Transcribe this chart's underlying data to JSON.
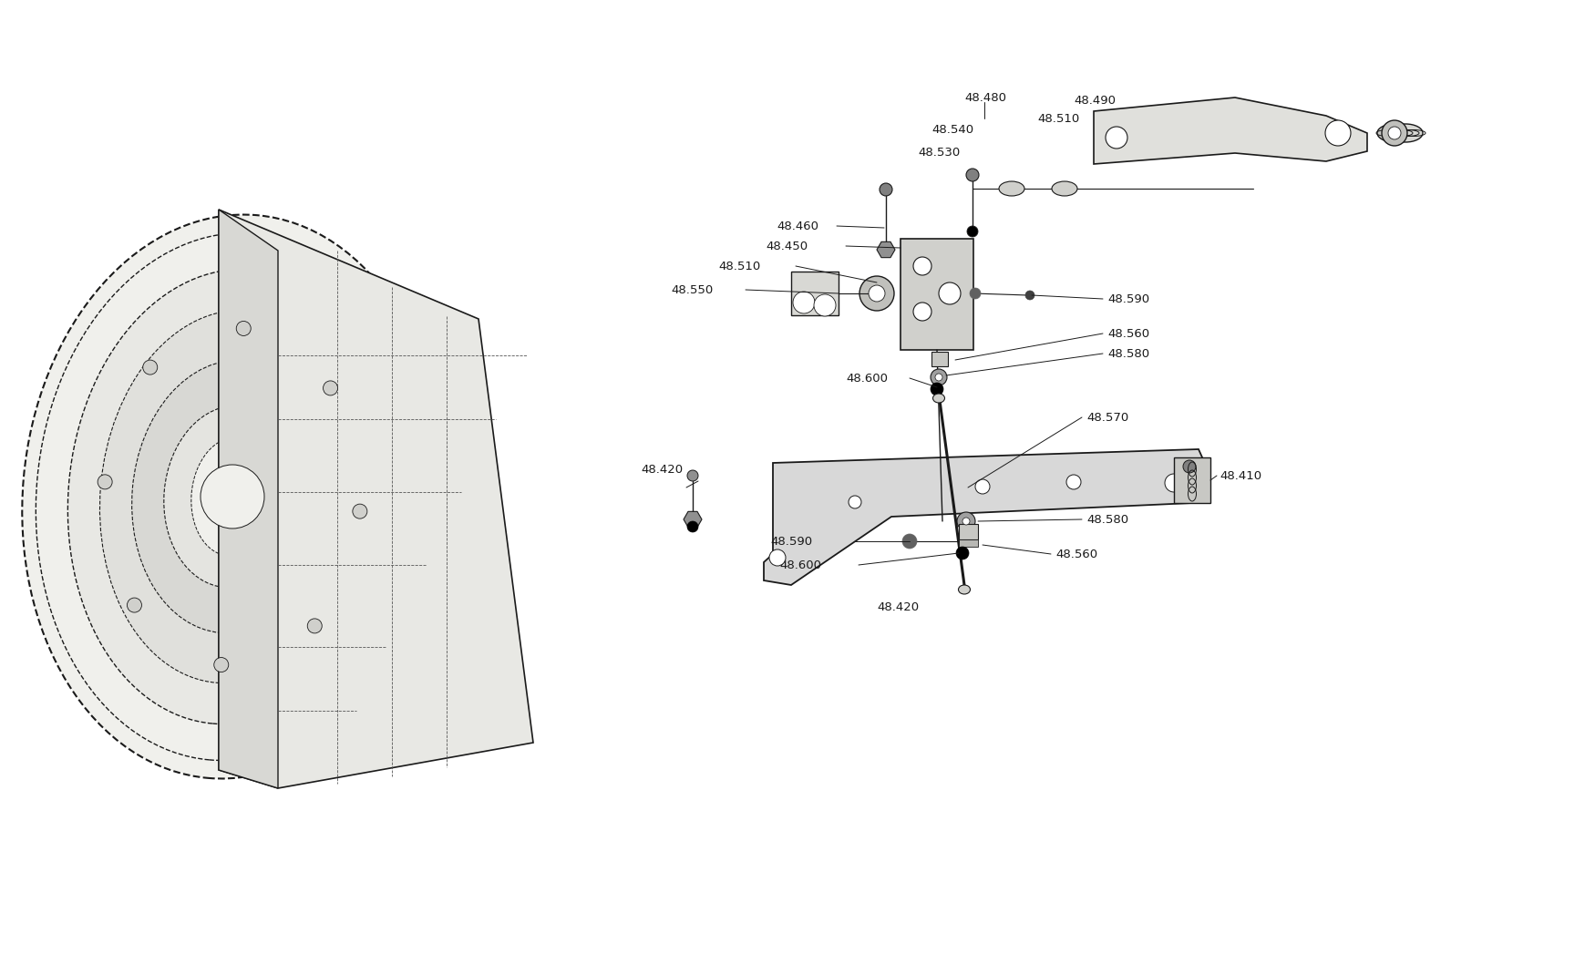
{
  "bg_color": "#ffffff",
  "line_color": "#1a1a1a",
  "text_color": "#1a1a1a",
  "font_size": 9.5
}
